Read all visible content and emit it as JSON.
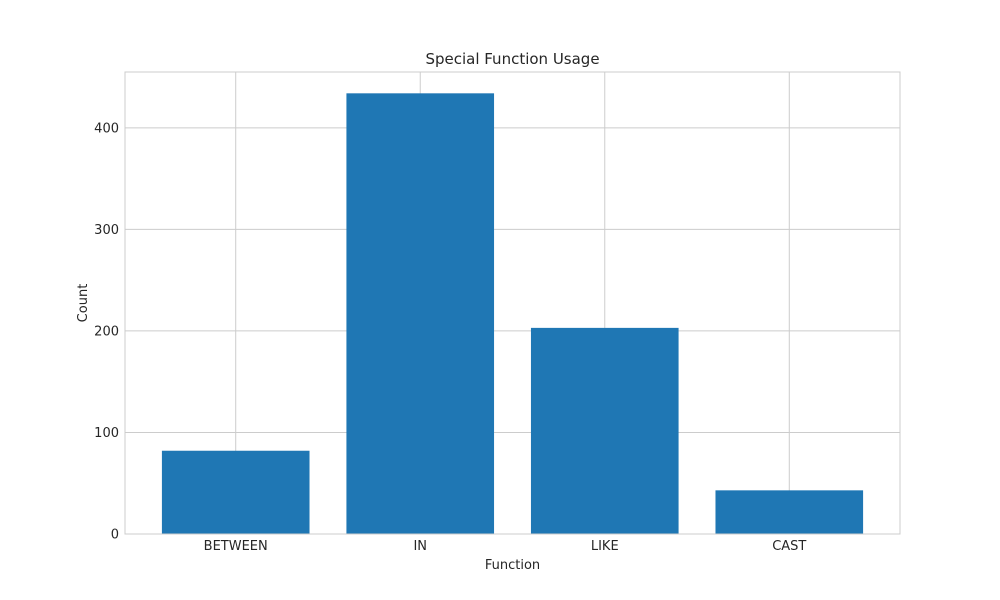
{
  "chart_data": {
    "type": "bar",
    "title": "Special Function Usage",
    "xlabel": "Function",
    "ylabel": "Count",
    "categories": [
      "BETWEEN",
      "IN",
      "LIKE",
      "CAST"
    ],
    "values": [
      82,
      434,
      203,
      43
    ],
    "ylim": [
      0,
      455
    ],
    "yticks": [
      0,
      100,
      200,
      300,
      400
    ],
    "grid": true,
    "bar_color": "#1f77b4"
  }
}
